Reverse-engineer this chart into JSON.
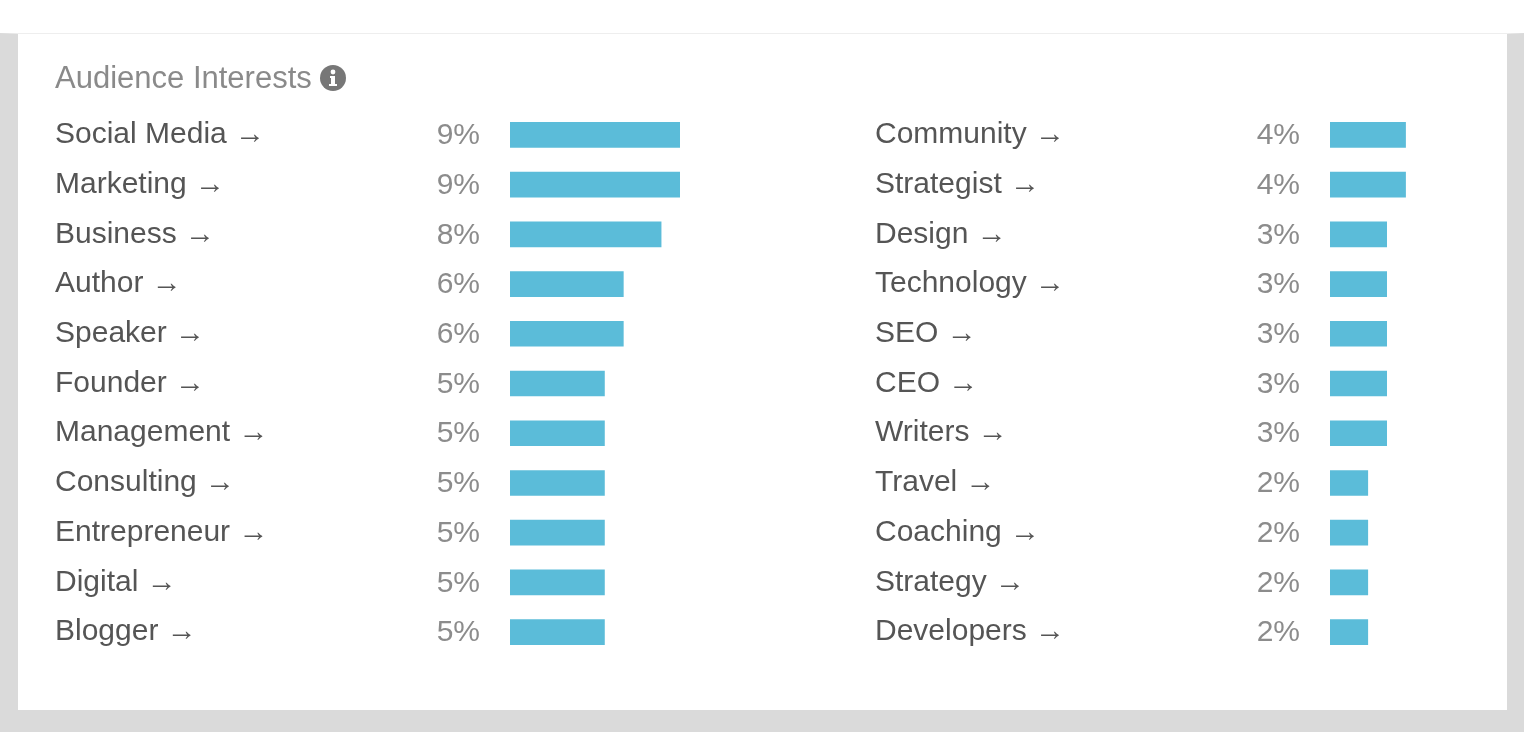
{
  "chart_data": [
    {
      "type": "bar",
      "orientation": "horizontal",
      "title": "Audience Interests",
      "tick_labels": "y",
      "color": "#5bbcd9",
      "categories": [
        "Social Media →",
        "Marketing →",
        "Business →",
        "Author →",
        "Speaker →",
        "Founder →",
        "Management →",
        "Consulting →",
        "Entrepreneur →",
        "Digital →",
        "Blogger →"
      ],
      "values": [
        9,
        9,
        8,
        6,
        6,
        5,
        5,
        5,
        5,
        5,
        5
      ],
      "value_labels": [
        "9%",
        "9%",
        "8%",
        "6%",
        "6%",
        "5%",
        "5%",
        "5%",
        "5%",
        "5%",
        "5%"
      ]
    },
    {
      "type": "bar",
      "orientation": "horizontal",
      "tick_labels": "y",
      "color": "#5bbcd9",
      "categories": [
        "Community →",
        "Strategist →",
        "Design →",
        "Technology →",
        "SEO →",
        "CEO →",
        "Writers →",
        "Travel →",
        "Coaching →",
        "Strategy →",
        "Developers →"
      ],
      "values": [
        4,
        4,
        3,
        3,
        3,
        3,
        3,
        2,
        2,
        2,
        2
      ],
      "value_labels": [
        "4%",
        "4%",
        "3%",
        "3%",
        "3%",
        "3%",
        "3%",
        "2%",
        "2%",
        "2%",
        "2%"
      ]
    }
  ]
}
